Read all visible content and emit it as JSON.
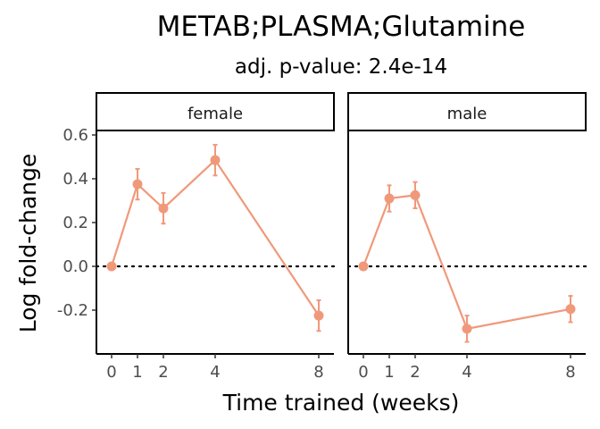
{
  "chart_data": {
    "type": "line",
    "title": "METAB;PLASMA;Glutamine",
    "subtitle": "adj. p-value: 2.4e-14",
    "xlabel": "Time trained (weeks)",
    "ylabel": "Log fold-change",
    "x_ticks": [
      0,
      1,
      2,
      4,
      8
    ],
    "y_ticks": [
      -0.2,
      0.0,
      0.2,
      0.4,
      0.6
    ],
    "y_tick_labels": [
      "-0.2",
      "0.0",
      "0.2",
      "0.4",
      "0.6"
    ],
    "xlim": [
      -0.4,
      8.4
    ],
    "ylim": [
      -0.4,
      0.6
    ],
    "reference_line": 0,
    "grid": false,
    "color": "#F0997A",
    "panels": [
      {
        "label": "female",
        "points": [
          {
            "x": 0,
            "y": 0.0,
            "lo": 0.0,
            "hi": 0.0
          },
          {
            "x": 1,
            "y": 0.375,
            "lo": 0.305,
            "hi": 0.445
          },
          {
            "x": 2,
            "y": 0.265,
            "lo": 0.195,
            "hi": 0.335
          },
          {
            "x": 4,
            "y": 0.485,
            "lo": 0.415,
            "hi": 0.555
          },
          {
            "x": 8,
            "y": -0.225,
            "lo": -0.295,
            "hi": -0.155
          }
        ]
      },
      {
        "label": "male",
        "points": [
          {
            "x": 0,
            "y": 0.0,
            "lo": 0.0,
            "hi": 0.0
          },
          {
            "x": 1,
            "y": 0.31,
            "lo": 0.25,
            "hi": 0.37
          },
          {
            "x": 2,
            "y": 0.325,
            "lo": 0.265,
            "hi": 0.385
          },
          {
            "x": 4,
            "y": -0.285,
            "lo": -0.345,
            "hi": -0.225
          },
          {
            "x": 8,
            "y": -0.195,
            "lo": -0.255,
            "hi": -0.135
          }
        ]
      }
    ]
  }
}
